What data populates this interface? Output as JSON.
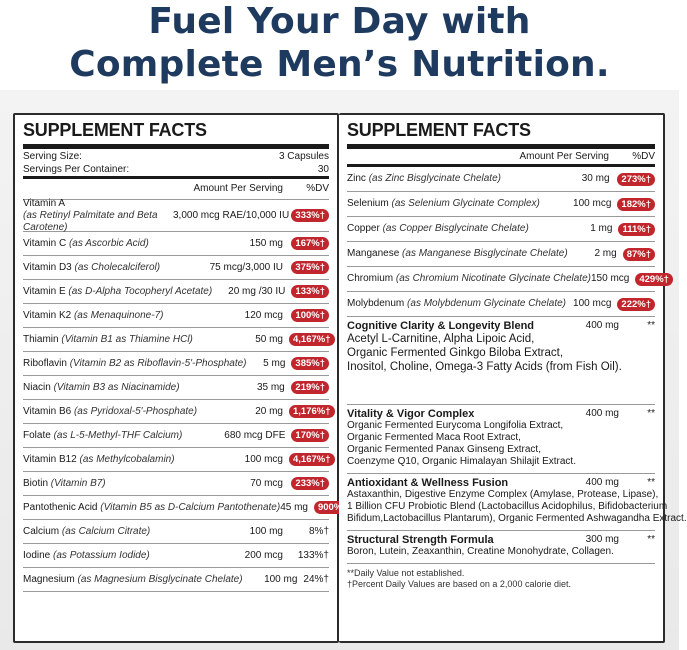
{
  "headline": {
    "line1": "Fuel Your Day with",
    "line2": "Complete Men’s Nutrition."
  },
  "left": {
    "title": "SUPPLEMENT FACTS",
    "serving_size_label": "Serving Size:",
    "serving_size": "3 Capsules",
    "servings_label": "Servings Per Container:",
    "servings": "30",
    "amount_header": "Amount Per Serving",
    "dv_header": "%DV",
    "rows": [
      {
        "name": "Vitamin A",
        "sub": "(as Retinyl Palmitate and Beta Carotene)",
        "amount": "3,000 mcg RAE/10,000 IU",
        "dv": "333%†",
        "pill": true
      },
      {
        "name": "Vitamin C",
        "sub": "(as Ascorbic Acid)",
        "amount": "150 mg",
        "dv": "167%†",
        "pill": true
      },
      {
        "name": "Vitamin D3",
        "sub": "(as Cholecalciferol)",
        "amount": "75 mcg/3,000 IU",
        "dv": "375%†",
        "pill": true
      },
      {
        "name": "Vitamin E",
        "sub": "(as D-Alpha Tocopheryl Acetate)",
        "amount": "20 mg /30 IU",
        "dv": "133%†",
        "pill": true
      },
      {
        "name": "Vitamin K2",
        "sub": "(as Menaquinone-7)",
        "amount": "120 mcg",
        "dv": "100%†",
        "pill": true
      },
      {
        "name": "Thiamin",
        "sub": "(Vitamin B1 as Thiamine HCl)",
        "amount": "50 mg",
        "dv": "4,167%†",
        "pill": true
      },
      {
        "name": "Riboflavin",
        "sub": "(Vitamin B2 as Riboflavin-5'-Phosphate)",
        "amount": "5 mg",
        "dv": "385%†",
        "pill": true
      },
      {
        "name": "Niacin",
        "sub": "(Vitamin B3 as Niacinamide)",
        "amount": "35 mg",
        "dv": "219%†",
        "pill": true
      },
      {
        "name": "Vitamin B6",
        "sub": "(as Pyridoxal-5'-Phosphate)",
        "amount": "20 mg",
        "dv": "1,176%†",
        "pill": true
      },
      {
        "name": "Folate",
        "sub": "(as L-5-Methyl-THF Calcium)",
        "amount": "680 mcg DFE",
        "dv": "170%†",
        "pill": true
      },
      {
        "name": "Vitamin B12",
        "sub": "(as Methylcobalamin)",
        "amount": "100 mcg",
        "dv": "4,167%†",
        "pill": true
      },
      {
        "name": "Biotin",
        "sub": "(Vitamin B7)",
        "amount": "70 mcg",
        "dv": "233%†",
        "pill": true
      },
      {
        "name": "Pantothenic Acid",
        "sub": "(Vitamin B5 as D-Calcium Pantothenate)",
        "amount": "45 mg",
        "dv": "900%†",
        "pill": true
      },
      {
        "name": "Calcium",
        "sub": "(as Calcium Citrate)",
        "amount": "100 mg",
        "dv": "8%†",
        "pill": false
      },
      {
        "name": "Iodine",
        "sub": "(as Potassium Iodide)",
        "amount": "200 mcg",
        "dv": "133%†",
        "pill": false
      },
      {
        "name": "Magnesium",
        "sub": "(as Magnesium Bisglycinate Chelate)",
        "amount": "100 mg",
        "dv": "24%†",
        "pill": false
      }
    ]
  },
  "right": {
    "title": "SUPPLEMENT FACTS",
    "amount_header": "Amount Per Serving",
    "dv_header": "%DV",
    "rows": [
      {
        "name": "Zinc",
        "sub": "(as Zinc Bisglycinate Chelate)",
        "amount": "30 mg",
        "dv": "273%†"
      },
      {
        "name": "Selenium",
        "sub": "(as Selenium Glycinate Complex)",
        "amount": "100 mcg",
        "dv": "182%†"
      },
      {
        "name": "Copper",
        "sub": "(as Copper Bisglycinate Chelate)",
        "amount": "1 mg",
        "dv": "111%†"
      },
      {
        "name": "Manganese",
        "sub": "(as Manganese Bisglycinate Chelate)",
        "amount": "2 mg",
        "dv": "87%†"
      },
      {
        "name": "Chromium",
        "sub": "(as Chromium Nicotinate Glycinate Chelate)",
        "amount": "150 mcg",
        "dv": "429%†"
      },
      {
        "name": "Molybdenum",
        "sub": "(as Molybdenum Glycinate Chelate)",
        "amount": "100 mcg",
        "dv": "222%†"
      }
    ],
    "blends": [
      {
        "name": "Cognitive Clarity & Longevity Blend",
        "amount": "400 mg",
        "dv": "**",
        "lines": [
          "Acetyl L-Carnitine, Alpha Lipoic Acid,",
          "Organic Fermented Ginkgo Biloba Extract,",
          "Inositol, Choline, Omega-3 Fatty Acids (from Fish Oil)."
        ]
      },
      {
        "name": "Vitality & Vigor Complex",
        "amount": "400 mg",
        "dv": "**",
        "lines": [
          "Organic Fermented Eurycoma Longifolia Extract,",
          "Organic Fermented Maca Root Extract,",
          "Organic Fermented Panax Ginseng Extract,",
          "Coenzyme Q10, Organic Himalayan Shilajit Extract."
        ]
      },
      {
        "name": "Antioxidant & Wellness Fusion",
        "amount": "400 mg",
        "dv": "**",
        "lines": [
          "Astaxanthin, Digestive Enzyme Complex (Amylase, Protease, Lipase),",
          "1 Billion CFU Probiotic Blend (Lactobacillus Acidophilus, Bifidobacterium",
          "Bifidum,Lactobacillus Plantarum), Organic Fermented Ashwagandha Extract."
        ]
      },
      {
        "name": "Structural Strength Formula",
        "amount": "300 mg",
        "dv": "**",
        "lines": [
          "Boron, Lutein, Zeaxanthin, Creatine Monohydrate, Collagen."
        ]
      }
    ],
    "footnote1": "**Daily Value not established.",
    "footnote2": "†Percent Daily Values are based on a 2,000 calorie diet."
  }
}
